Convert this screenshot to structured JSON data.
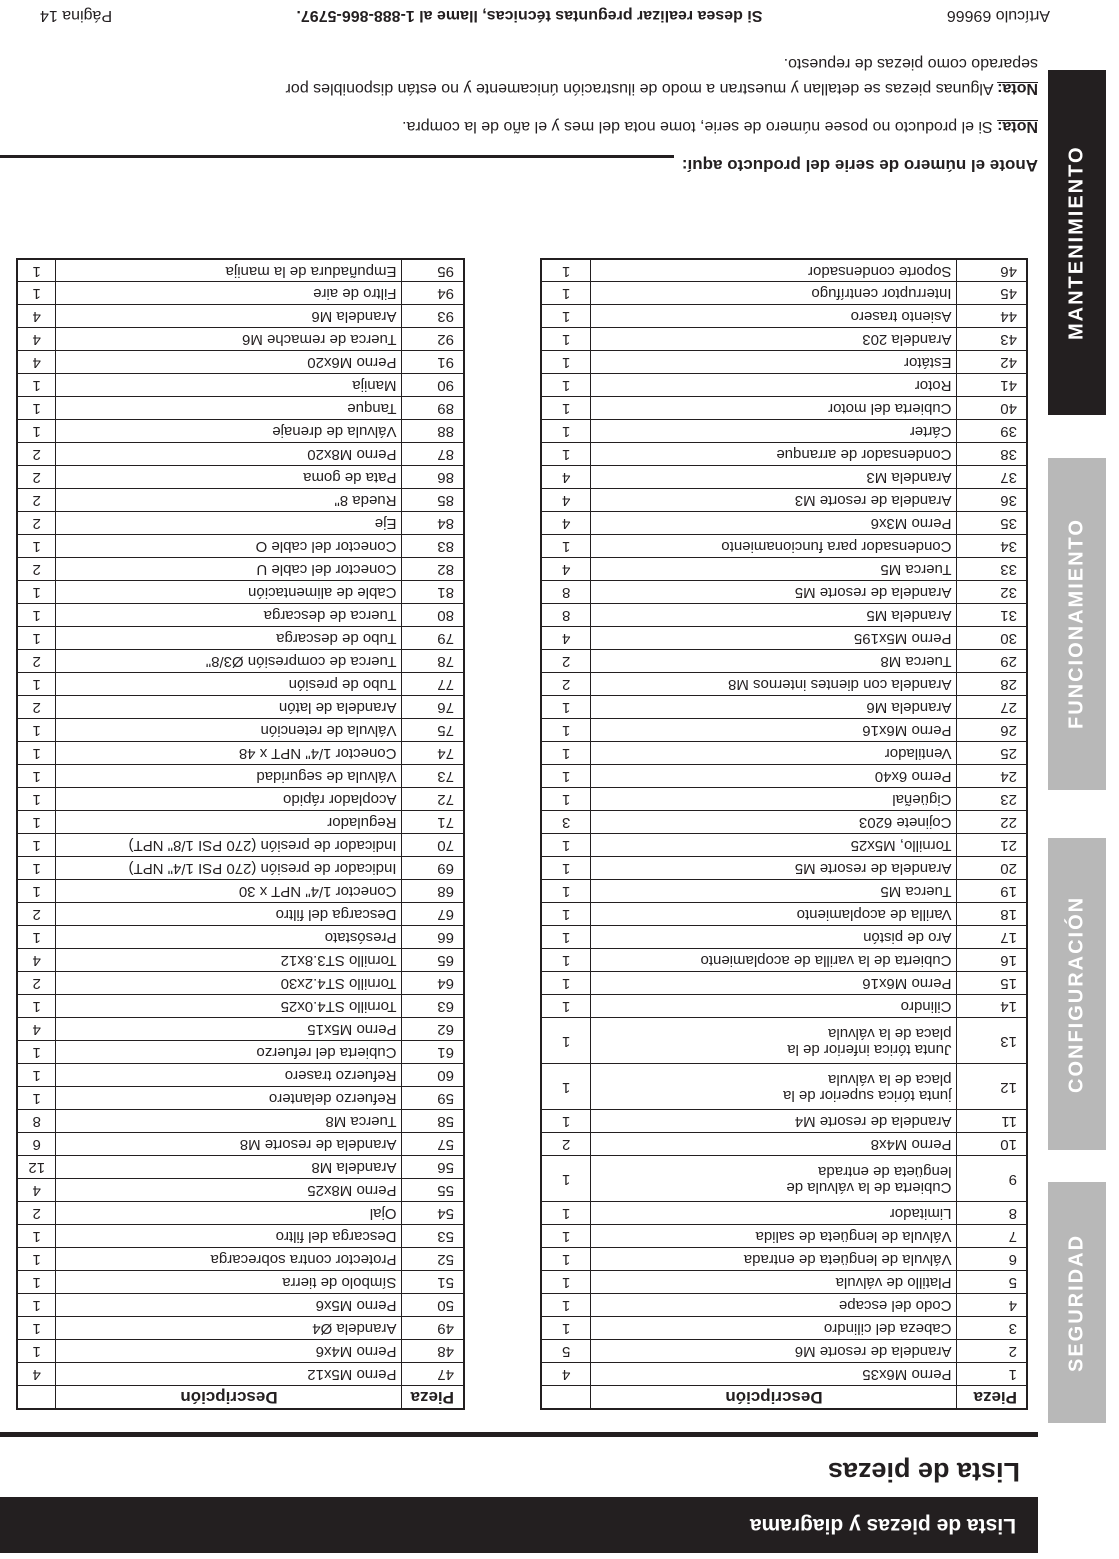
{
  "page": {
    "header_bar_title": "Lista de piezas y diagrama",
    "section_title": "Lista de piezas",
    "serial_prompt": "Anote el número de serie del producto aquí:",
    "notes": [
      {
        "label": "Nota:",
        "text": " Si el producto no posee número de serie, tome nota del mes y el año de la compra."
      },
      {
        "label": "Nota:",
        "text": " Algunas piezas se detallan y muestran a modo de ilustración únicamente y no están disponibles por\nseparado como piezas de repuesto."
      }
    ],
    "footer": {
      "article": "Artículo 69666",
      "support": "Si desea realizar preguntas técnicas, llame al 1-888-866-5797.",
      "page": "Página 14"
    }
  },
  "colors": {
    "ink": "#231f20",
    "tab_grey": "#b8b8b8",
    "paper": "#ffffff"
  },
  "sidebar_tabs": [
    {
      "label": "SEGURIDAD",
      "active": false
    },
    {
      "label": "CONFIGURACIÓN",
      "active": false
    },
    {
      "label": "FUNCIONAMIENTO",
      "active": false
    },
    {
      "label": "MANTENIMIENTO",
      "active": true
    }
  ],
  "tables": [
    {
      "headers": [
        "Pieza",
        "Descripción",
        ""
      ],
      "rows": [
        [
          "1",
          "Perno M6x35",
          "4"
        ],
        [
          "2",
          "Arandela de resorte M6",
          "5"
        ],
        [
          "3",
          "Cabeza del cilindro",
          "1"
        ],
        [
          "4",
          "Codo del escape",
          "1"
        ],
        [
          "5",
          "Platillo de válvula",
          "1"
        ],
        [
          "6",
          "Válvula de lengüeta de entrada",
          "1"
        ],
        [
          "7",
          "Válvula de lengüeta de salida",
          "1"
        ],
        [
          "8",
          "Limitador",
          "1"
        ],
        [
          "9",
          "Cubierta de la válvula de\nlengüeta de entrada",
          "1"
        ],
        [
          "10",
          "Perno M4x8",
          "2"
        ],
        [
          "11",
          "Arandela de resorte M4",
          "1"
        ],
        [
          "12",
          "junta tórica superior de la\nplaca de la válvula",
          "1"
        ],
        [
          "13",
          "Junta tórica inferior de la\nplaca de la válvula",
          "1"
        ],
        [
          "14",
          "Cilindro",
          "1"
        ],
        [
          "15",
          "Perno M6x16",
          "1"
        ],
        [
          "16",
          "Cubierta de la varilla de acoplamiento",
          "1"
        ],
        [
          "17",
          "Aro de pistón",
          "1"
        ],
        [
          "18",
          "Varilla de acoplamiento",
          "1"
        ],
        [
          "19",
          "Tuerca M5",
          "1"
        ],
        [
          "20",
          "Arandela de resorte M5",
          "1"
        ],
        [
          "21",
          "Tornillo, M5x25",
          "1"
        ],
        [
          "22",
          "Cojinete 6203",
          "3"
        ],
        [
          "23",
          "Cigüeñal",
          "1"
        ],
        [
          "24",
          "Perno 6x40",
          "1"
        ],
        [
          "25",
          "Ventilador",
          "1"
        ],
        [
          "26",
          "Perno M6x16",
          "1"
        ],
        [
          "27",
          "Arandela M6",
          "1"
        ],
        [
          "28",
          "Arandela con dientes internos M8",
          "2"
        ],
        [
          "29",
          "Tuerca M8",
          "2"
        ],
        [
          "30",
          "Perno M5x195",
          "4"
        ],
        [
          "31",
          "Arandela M5",
          "8"
        ],
        [
          "32",
          "Arandela de resorte M5",
          "8"
        ],
        [
          "33",
          "Tuerca M5",
          "4"
        ],
        [
          "34",
          "Condensador para funcionamiento",
          "1"
        ],
        [
          "35",
          "Perno M3x6",
          "4"
        ],
        [
          "36",
          "Arandela de resorte M3",
          "4"
        ],
        [
          "37",
          "Arandela M3",
          "4"
        ],
        [
          "38",
          "Condensador de arranque",
          "1"
        ],
        [
          "39",
          "Cárter",
          "1"
        ],
        [
          "40",
          "Cubierta del motor",
          "1"
        ],
        [
          "41",
          "Rotor",
          "1"
        ],
        [
          "42",
          "Estátor",
          "1"
        ],
        [
          "43",
          "Arandela 203",
          "1"
        ],
        [
          "44",
          "Asiento trasero",
          "1"
        ],
        [
          "45",
          "Interruptor centrífugo",
          "1"
        ],
        [
          "46",
          "Soporte condensador",
          "1"
        ]
      ]
    },
    {
      "headers": [
        "Pieza",
        "Descripción",
        ""
      ],
      "rows": [
        [
          "47",
          "Perno M5x12",
          "4"
        ],
        [
          "48",
          "Perno M4x6",
          "1"
        ],
        [
          "49",
          "Arandela Ø4",
          "1"
        ],
        [
          "50",
          "Perno M5x6",
          "1"
        ],
        [
          "51",
          "Símbolo de  tierra",
          "1"
        ],
        [
          "52",
          "Protector contra sobrecarga",
          "1"
        ],
        [
          "53",
          "Descarga del filtro",
          "1"
        ],
        [
          "54",
          "Ojal",
          "2"
        ],
        [
          "55",
          "Perno M8x25",
          "4"
        ],
        [
          "56",
          "Arandela M8",
          "12"
        ],
        [
          "57",
          "Arandela de resorte M8",
          "6"
        ],
        [
          "58",
          "Tuerca M8",
          "8"
        ],
        [
          "59",
          "Refuerzo delantero",
          "1"
        ],
        [
          "60",
          "Refuerzo trasero",
          "1"
        ],
        [
          "61",
          "Cubierta del refuerzo",
          "1"
        ],
        [
          "62",
          "Perno M5x15",
          "4"
        ],
        [
          "63",
          "Tornillo ST4.0x25",
          "1"
        ],
        [
          "64",
          "Tornillo ST4.2x30",
          "2"
        ],
        [
          "65",
          "Tornillo ST3.8x12",
          "4"
        ],
        [
          "66",
          "Presóstato",
          "1"
        ],
        [
          "67",
          "Descarga del filtro",
          "2"
        ],
        [
          "68",
          "Conector 1/4\" NPT x 30",
          "1"
        ],
        [
          "69",
          "Indicador de presión (270 PSI 1/4\" NPT)",
          "1"
        ],
        [
          "70",
          "Indicador de presión (270 PSI 1/8\" NPT)",
          "1"
        ],
        [
          "71",
          "Regulador",
          "1"
        ],
        [
          "72",
          "Acoplador rápido",
          "1"
        ],
        [
          "73",
          "Válvula de seguridad",
          "1"
        ],
        [
          "74",
          "Conector 1/4\" NPT x 48",
          "1"
        ],
        [
          "75",
          "Válvula de retención",
          "1"
        ],
        [
          "76",
          "Arandela de latón",
          "2"
        ],
        [
          "77",
          "Tubo de presión",
          "1"
        ],
        [
          "78",
          "Tuerca de compresión Ø3/8\"",
          "2"
        ],
        [
          "79",
          "Tubo de descarga",
          "1"
        ],
        [
          "80",
          "Tuerca de descarga",
          "1"
        ],
        [
          "81",
          "Cable de alimentación",
          "1"
        ],
        [
          "82",
          "Conector del cable U",
          "2"
        ],
        [
          "83",
          "Conector del cable O",
          "1"
        ],
        [
          "84",
          "Eje",
          "2"
        ],
        [
          "85",
          "Rueda 8\"",
          "2"
        ],
        [
          "86",
          "Pata de goma",
          "2"
        ],
        [
          "87",
          "Perno M8x20",
          "2"
        ],
        [
          "88",
          "Válvula de drenaje",
          "1"
        ],
        [
          "89",
          "Tanque",
          "1"
        ],
        [
          "90",
          "Manija",
          "1"
        ],
        [
          "91",
          "Perno M6x20",
          "4"
        ],
        [
          "92",
          "Tuerca de remache M6",
          "4"
        ],
        [
          "93",
          "Arandela M6",
          "4"
        ],
        [
          "94",
          "Filtro de aire",
          "1"
        ],
        [
          "95",
          "Empuñadura de la manija",
          "1"
        ]
      ]
    }
  ]
}
